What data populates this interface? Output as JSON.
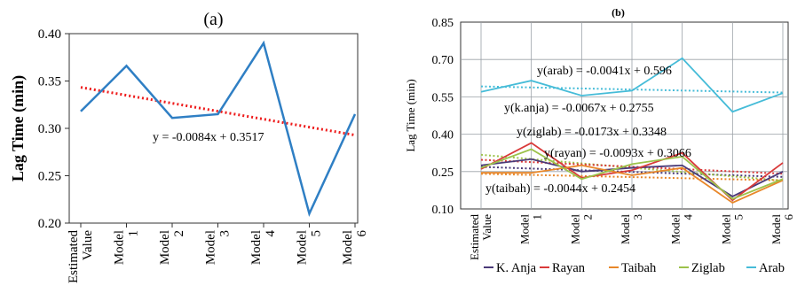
{
  "chart_data": [
    {
      "type": "line",
      "title": "(a)",
      "xlabel": "",
      "ylabel": "Lag Time (min)",
      "ylim": [
        0.2,
        0.4
      ],
      "yticks": [
        "0.20",
        "0.25",
        "0.30",
        "0.35",
        "0.40"
      ],
      "categories": [
        [
          "Estimated",
          "Value"
        ],
        [
          "Model",
          "1"
        ],
        [
          "Model",
          "2"
        ],
        [
          "Model",
          "3"
        ],
        [
          "Model",
          "4"
        ],
        [
          "Model",
          "5"
        ],
        [
          "Model",
          "6"
        ]
      ],
      "grid": false,
      "series": [
        {
          "values": [
            0.318,
            0.366,
            0.311,
            0.315,
            0.39,
            0.21,
            0.315
          ]
        }
      ],
      "trendline": {
        "slope": -0.0084,
        "intercept": 0.3517
      },
      "annotations": [
        {
          "text": "y = -0.0084x + 0.3517"
        }
      ]
    },
    {
      "type": "line",
      "title": "(b)",
      "xlabel": "",
      "ylabel": "Lag Time (min)",
      "ylim": [
        0.1,
        0.85
      ],
      "yticks": [
        "0.10",
        "0.25",
        "0.40",
        "0.55",
        "0.70",
        "0.85"
      ],
      "categories": [
        [
          "Estimated",
          "Value"
        ],
        [
          "Model",
          "1"
        ],
        [
          "Model",
          "2"
        ],
        [
          "Model",
          "3"
        ],
        [
          "Model",
          "4"
        ],
        [
          "Model",
          "5"
        ],
        [
          "Model",
          "6"
        ]
      ],
      "grid": true,
      "legend_position": "bottom",
      "series": [
        {
          "name": "K. Anja",
          "values": [
            0.275,
            0.3,
            0.25,
            0.265,
            0.275,
            0.15,
            0.25
          ]
        },
        {
          "name": "Rayan",
          "values": [
            0.26,
            0.365,
            0.225,
            0.255,
            0.325,
            0.135,
            0.285
          ]
        },
        {
          "name": "Taibah",
          "values": [
            0.245,
            0.245,
            0.275,
            0.235,
            0.265,
            0.125,
            0.215
          ]
        },
        {
          "name": "Ziglab",
          "values": [
            0.265,
            0.34,
            0.22,
            0.28,
            0.31,
            0.14,
            0.22
          ]
        },
        {
          "name": "Arab",
          "values": [
            0.57,
            0.615,
            0.555,
            0.575,
            0.705,
            0.49,
            0.565
          ]
        }
      ],
      "trendlines": [
        {
          "series": "Arab",
          "slope": -0.0041,
          "intercept": 0.596
        },
        {
          "series": "K. Anja",
          "slope": -0.0067,
          "intercept": 0.2755
        },
        {
          "series": "Ziglab",
          "slope": -0.0173,
          "intercept": 0.3348
        },
        {
          "series": "Rayan",
          "slope": -0.0093,
          "intercept": 0.3066
        },
        {
          "series": "Taibah",
          "slope": -0.0044,
          "intercept": 0.2454
        }
      ],
      "annotations": [
        {
          "text": "y(arab) = -0.0041x + 0.596"
        },
        {
          "text": "y(k.anja) = -0.0067x + 0.2755"
        },
        {
          "text": "y(ziglab) = -0.0173x + 0.3348"
        },
        {
          "text": "y(rayan) = -0.0093x + 0.3066"
        },
        {
          "text": "y(taibah) = -0.0044x + 0.2454"
        }
      ]
    }
  ],
  "colors": {
    "a_series": "#2f7fc4",
    "a_trend": "#ee1c1c",
    "b_series": [
      "#4a3a78",
      "#d93a3a",
      "#e8872a",
      "#9cc24a",
      "#46bcd8"
    ],
    "b_grid": "#9aa0a6"
  }
}
